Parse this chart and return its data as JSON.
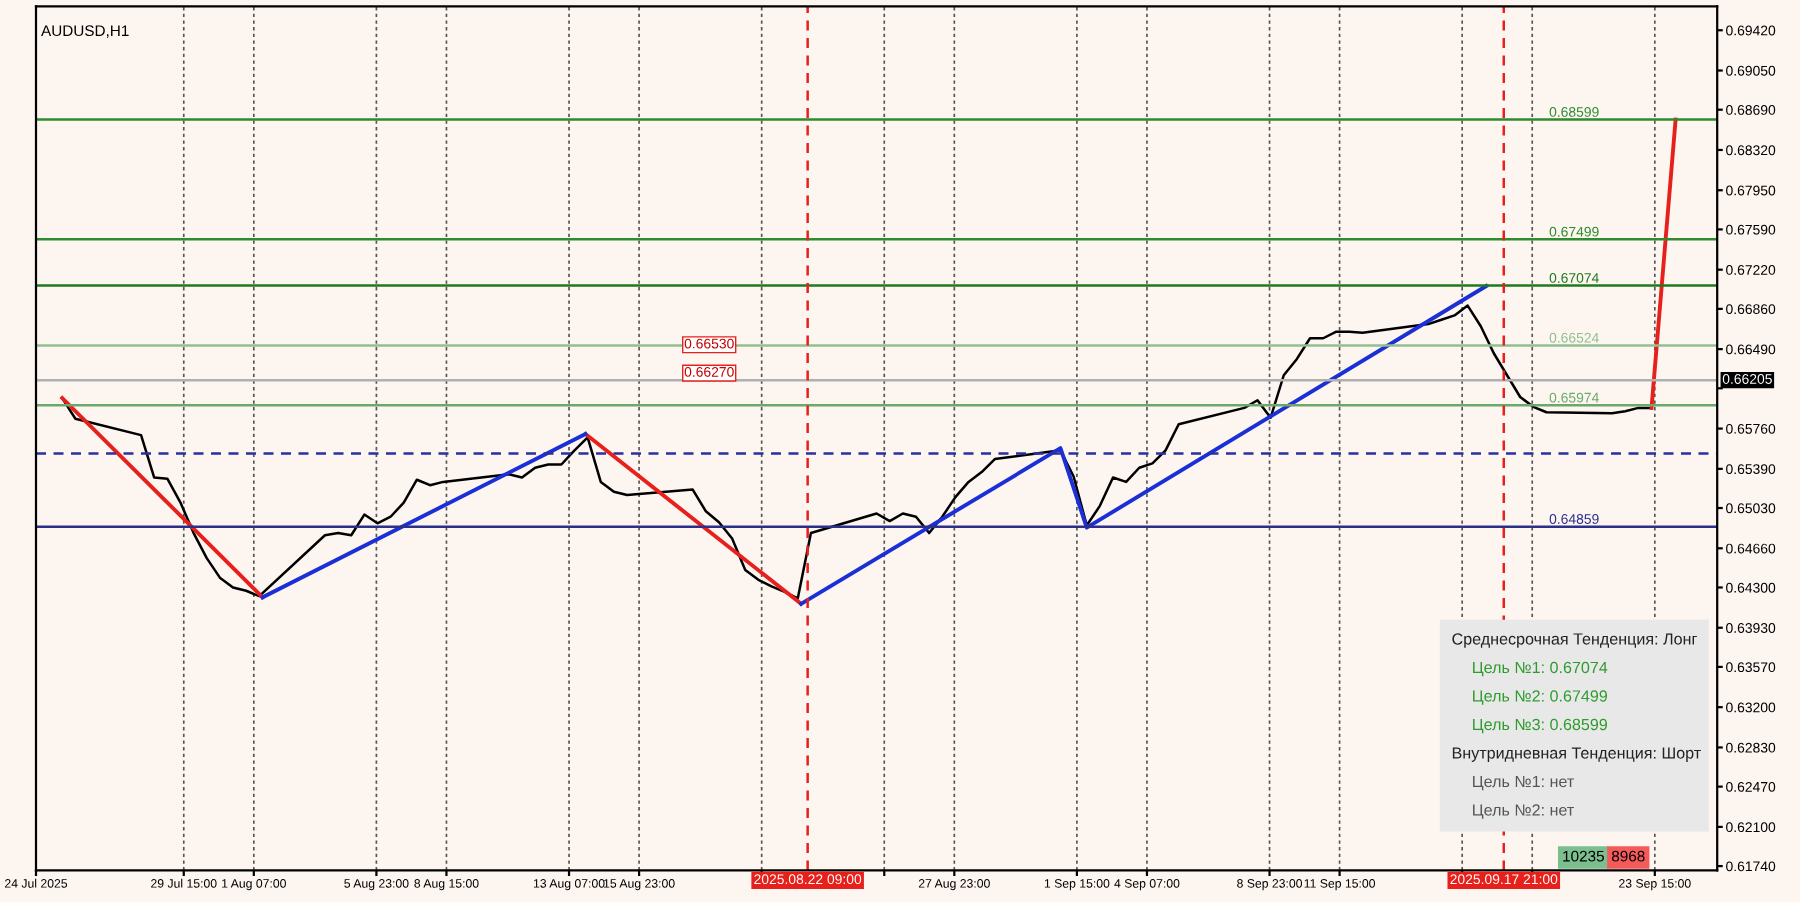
{
  "chart_data": {
    "type": "line",
    "title": "AUDUSD,H1",
    "x": [
      "2025-07-25T00:00",
      "2025-07-25T12:00",
      "2025-07-28T00:00",
      "2025-07-28T12:00",
      "2025-07-29T00:00",
      "2025-07-29T12:00",
      "2025-07-30T00:00",
      "2025-07-30T12:00",
      "2025-07-31T00:00",
      "2025-07-31T12:00",
      "2025-08-01T00:00",
      "2025-08-01T12:00",
      "2025-08-04T00:00",
      "2025-08-04T12:00",
      "2025-08-05T00:00",
      "2025-08-05T12:00",
      "2025-08-06T00:00",
      "2025-08-06T12:00",
      "2025-08-07T00:00",
      "2025-08-07T12:00",
      "2025-08-08T00:00",
      "2025-08-08T12:00",
      "2025-08-11T00:00",
      "2025-08-11T12:00",
      "2025-08-12T00:00",
      "2025-08-12T12:00",
      "2025-08-13T00:00",
      "2025-08-13T12:00",
      "2025-08-14T00:00",
      "2025-08-14T12:00",
      "2025-08-15T00:00",
      "2025-08-15T12:00",
      "2025-08-18T00:00",
      "2025-08-18T12:00",
      "2025-08-19T00:00",
      "2025-08-19T12:00",
      "2025-08-20T00:00",
      "2025-08-20T12:00",
      "2025-08-21T00:00",
      "2025-08-21T12:00",
      "2025-08-22T00:00",
      "2025-08-22T12:00",
      "2025-08-25T00:00",
      "2025-08-25T12:00",
      "2025-08-26T00:00",
      "2025-08-26T12:00",
      "2025-08-27T00:00",
      "2025-08-27T12:00",
      "2025-08-28T00:00",
      "2025-08-28T12:00",
      "2025-08-29T00:00",
      "2025-08-29T12:00",
      "2025-09-01T00:00",
      "2025-09-01T12:00",
      "2025-09-02T00:00",
      "2025-09-02T12:00",
      "2025-09-03T00:00",
      "2025-09-03T12:00",
      "2025-09-04T00:00",
      "2025-09-04T12:00",
      "2025-09-05T00:00",
      "2025-09-05T12:00",
      "2025-09-08T00:00",
      "2025-09-08T12:00",
      "2025-09-09T00:00",
      "2025-09-09T12:00",
      "2025-09-10T00:00",
      "2025-09-10T12:00",
      "2025-09-11T00:00",
      "2025-09-11T12:00",
      "2025-09-12T00:00",
      "2025-09-12T12:00",
      "2025-09-15T00:00",
      "2025-09-15T12:00",
      "2025-09-16T00:00",
      "2025-09-16T12:00",
      "2025-09-17T00:00",
      "2025-09-17T12:00",
      "2025-09-18T00:00",
      "2025-09-18T12:00",
      "2025-09-19T00:00",
      "2025-09-19T12:00",
      "2025-09-22T00:00",
      "2025-09-22T12:00",
      "2025-09-23T00:00",
      "2025-09-23T12:00"
    ],
    "series": [
      {
        "color": "#000000",
        "values": [
          0.6604,
          0.6585,
          0.657,
          0.6531,
          0.653,
          0.6508,
          0.648,
          0.6457,
          0.6439,
          0.643,
          0.6427,
          0.6422,
          0.6478,
          0.648,
          0.6478,
          0.6497,
          0.6489,
          0.6495,
          0.6508,
          0.6529,
          0.6524,
          0.6527,
          0.6534,
          0.6531,
          0.654,
          0.6543,
          0.6543,
          0.6556,
          0.6568,
          0.6527,
          0.6518,
          0.6515,
          0.652,
          0.65,
          0.649,
          0.6475,
          0.6446,
          0.6437,
          0.6431,
          0.6426,
          0.642,
          0.648,
          0.6498,
          0.6491,
          0.6498,
          0.6495,
          0.648,
          0.6495,
          0.6513,
          0.6527,
          0.6536,
          0.6548,
          0.6556,
          0.6532,
          0.6487,
          0.6505,
          0.6531,
          0.6527,
          0.654,
          0.6544,
          0.6556,
          0.658,
          0.6595,
          0.6602,
          0.6586,
          0.6625,
          0.664,
          0.6659,
          0.6659,
          0.6665,
          0.6665,
          0.6664,
          0.6672,
          0.6676,
          0.668,
          0.6689,
          0.667,
          0.6645,
          0.6625,
          0.6605,
          0.6596,
          0.6591,
          0.659,
          0.6592,
          0.6595,
          0.6595
        ]
      },
      {
        "color": "#e8201c",
        "x": [
          "2025-07-25T00:00",
          "2025-08-01T15:00",
          "2025-08-08T00:00",
          "2025-08-13T22:00",
          "2025-08-22T03:00",
          "2025-09-10T00:00",
          "2025-09-23T12:00",
          "2025-09-24T10:00"
        ],
        "values": [
          0.6604,
          0.6421,
          null,
          0.6571,
          0.6415,
          null,
          0.6595,
          0.686
        ]
      },
      {
        "color": "#1a2fd6",
        "x": [
          "2025-08-01T15:00",
          "2025-08-13T22:00",
          "2025-08-18T00:00",
          "2025-08-22T03:00",
          "2025-09-01T00:00",
          "2025-09-02T00:00",
          "2025-09-17T05:00"
        ],
        "values": [
          0.6421,
          0.6571,
          null,
          0.6415,
          0.6558,
          0.6485,
          0.6707
        ]
      }
    ],
    "xlim": [
      "2025-07-24T00:00",
      "2025-09-26T00:00"
    ],
    "xticks": [
      {
        "value": "2025-07-24T00:00",
        "label": "24 Jul 2025"
      },
      {
        "value": "2025-07-29T15:00",
        "label": "29 Jul 15:00"
      },
      {
        "value": "2025-08-01T07:00",
        "label": "1 Aug 07:00"
      },
      {
        "value": "2025-08-05T23:00",
        "label": "5 Aug 23:00"
      },
      {
        "value": "2025-08-08T15:00",
        "label": "8 Aug 15:00"
      },
      {
        "value": "2025-08-13T07:00",
        "label": "13 Aug 07:00"
      },
      {
        "value": "2025-08-15T23:00",
        "label": "15 Aug 23:00"
      },
      {
        "value": "2025-08-20T15:00",
        "label": null
      },
      {
        "value": "2025-08-25T07:00",
        "label": null
      },
      {
        "value": "2025-08-27T23:00",
        "label": "27 Aug 23:00"
      },
      {
        "value": "2025-09-01T15:00",
        "label": "1 Sep 15:00"
      },
      {
        "value": "2025-09-04T07:00",
        "label": "4 Sep 07:00"
      },
      {
        "value": "2025-09-08T23:00",
        "label": "8 Sep 23:00"
      },
      {
        "value": "2025-09-11T15:00",
        "label": "11 Sep 15:00"
      },
      {
        "value": "2025-09-16T07:00",
        "label": null
      },
      {
        "value": "2025-09-18T23:00",
        "label": null
      },
      {
        "value": "2025-09-23T15:00",
        "label": "23 Sep 15:00"
      }
    ],
    "ylim": [
      0.617,
      0.6964
    ],
    "yticks": [
      {
        "value": 0.6174,
        "label": "0.61740"
      },
      {
        "value": 0.621,
        "label": "0.62100"
      },
      {
        "value": 0.6247,
        "label": "0.62470"
      },
      {
        "value": 0.6283,
        "label": "0.62830"
      },
      {
        "value": 0.632,
        "label": "0.63200"
      },
      {
        "value": 0.6357,
        "label": "0.63570"
      },
      {
        "value": 0.6393,
        "label": "0.63930"
      },
      {
        "value": 0.643,
        "label": "0.64300"
      },
      {
        "value": 0.6466,
        "label": "0.64660"
      },
      {
        "value": 0.6503,
        "label": "0.65030"
      },
      {
        "value": 0.6539,
        "label": "0.65390"
      },
      {
        "value": 0.6576,
        "label": "0.65760"
      },
      {
        "value": 0.6613,
        "label": null
      },
      {
        "value": 0.6649,
        "label": "0.66490"
      },
      {
        "value": 0.6686,
        "label": "0.66860"
      },
      {
        "value": 0.6722,
        "label": "0.67220"
      },
      {
        "value": 0.6759,
        "label": "0.67590"
      },
      {
        "value": 0.6795,
        "label": "0.67950"
      },
      {
        "value": 0.6832,
        "label": "0.68320"
      },
      {
        "value": 0.6869,
        "label": "0.68690"
      },
      {
        "value": 0.6905,
        "label": "0.69050"
      },
      {
        "value": 0.6942,
        "label": "0.69420"
      }
    ],
    "grid": "x",
    "marker": "none",
    "line_style": "solid",
    "ref_lines": [
      {
        "axis": "y",
        "value": 0.68599,
        "label": "0.68599",
        "color": "#2e8b2e"
      },
      {
        "axis": "y",
        "value": 0.67499,
        "label": "0.67499",
        "color": "#2e8b2e"
      },
      {
        "axis": "y",
        "value": 0.67074,
        "label": "0.67074",
        "color": "#1f7a1f"
      },
      {
        "axis": "y",
        "value": 0.66524,
        "label": "0.66524",
        "color": "#8fbf8f"
      },
      {
        "axis": "y",
        "value": 0.65974,
        "label": "0.65974",
        "color": "#6aa96a"
      },
      {
        "axis": "y",
        "value": 0.64859,
        "label": "0.64859",
        "color": "#2b2f8a"
      },
      {
        "axis": "y",
        "value": 0.66205,
        "label": "0.66205",
        "color": "#b0b0b0"
      },
      {
        "axis": "y",
        "value": 0.6553,
        "label": null,
        "color": "#2b2fa0",
        "line_style": "dashed"
      },
      {
        "axis": "x",
        "value": "2025-08-22T09:00",
        "label": "2025.08.22 09:00",
        "color": "#e8201c",
        "line_style": "dashed"
      },
      {
        "axis": "x",
        "value": "2025-09-17T21:00",
        "label": "2025.09.17 21:00",
        "color": "#e8201c",
        "line_style": "dashed"
      }
    ],
    "annotations": [
      {
        "text": "0.66270",
        "x": "2025-08-19T14:00",
        "y": 0.6627
      },
      {
        "text": "0.66530",
        "x": "2025-08-19T14:00",
        "y": 0.6653
      },
      "Среднесрочная Тенденция: Лонг",
      "Цель №1: 0.67074",
      "Цель №2: 0.67499",
      "Цель №3: 0.68599",
      "Внутридневная Тенденция: Шорт",
      "Цель №1: нет",
      "Цель №2: нет",
      "10235",
      "8968"
    ]
  }
}
